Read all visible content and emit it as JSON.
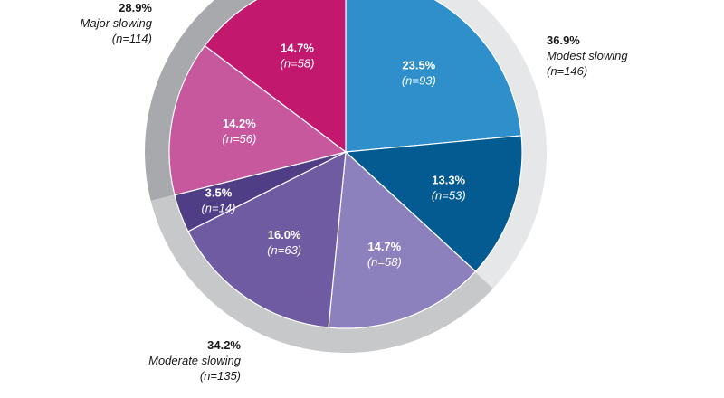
{
  "chart_data": {
    "type": "pie",
    "slices": [
      {
        "label": "23.5%",
        "n": "(n=93)",
        "value": 23.5,
        "color": "#2e8fca"
      },
      {
        "label": "13.3%",
        "n": "(n=53)",
        "value": 13.3,
        "color": "#045b91"
      },
      {
        "label": "14.7%",
        "n": "(n=58)",
        "value": 14.7,
        "color": "#8d81bd"
      },
      {
        "label": "16.0%",
        "n": "(n=63)",
        "value": 16.0,
        "color": "#6e5ba2"
      },
      {
        "label": "3.5%",
        "n": "(n=14)",
        "value": 3.5,
        "color": "#4f3d86"
      },
      {
        "label": "14.2%",
        "n": "(n=56)",
        "value": 14.2,
        "color": "#c8589d"
      },
      {
        "label": "14.7%",
        "n": "(n=58)",
        "value": 14.7,
        "color": "#c2196f"
      }
    ],
    "groups": [
      {
        "pct": "36.9%",
        "label": "Modest slowing",
        "n": "(n=146)",
        "value": 36.9,
        "color": "#e6e7e8"
      },
      {
        "pct": "34.2%",
        "label": "Moderate slowing",
        "n": "(n=135)",
        "value": 34.2,
        "color": "#c7c8ca"
      },
      {
        "pct": "28.9%",
        "label": "Major slowing",
        "n": "(n=114)",
        "value": 28.9,
        "color": "#a7a9ac"
      }
    ]
  }
}
